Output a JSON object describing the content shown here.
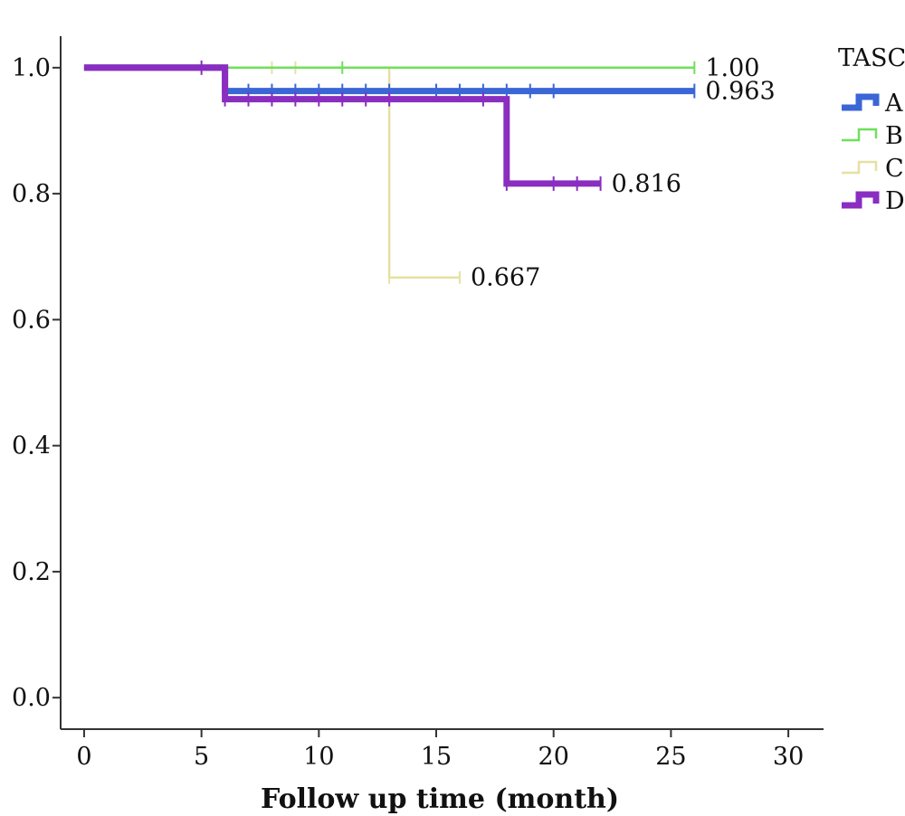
{
  "chart_data": {
    "type": "line",
    "step": true,
    "xlabel": "Follow up time (month)",
    "ylabel": "",
    "xlim": [
      -1,
      31.5
    ],
    "ylim": [
      -0.05,
      1.05
    ],
    "x_ticks": [
      0,
      5,
      10,
      15,
      20,
      25,
      30
    ],
    "x_tick_labels": [
      "0",
      "5",
      "10",
      "15",
      "20",
      "25",
      "30"
    ],
    "y_ticks": [
      0.0,
      0.2,
      0.4,
      0.6,
      0.8,
      1.0
    ],
    "y_tick_labels": [
      "0.0",
      "0.2",
      "0.4",
      "0.6",
      "0.8",
      "1.0"
    ],
    "grid": false,
    "legend": {
      "title": "TASC",
      "position": "right"
    },
    "series": [
      {
        "name": "A",
        "color": "#3a66d6",
        "stroke_width": "thick",
        "steps": [
          [
            0,
            1.0
          ],
          [
            6,
            1.0
          ],
          [
            6,
            0.963
          ],
          [
            26,
            0.963
          ]
        ],
        "censored": [
          [
            7,
            0.963
          ],
          [
            8,
            0.963
          ],
          [
            9,
            0.963
          ],
          [
            10,
            0.963
          ],
          [
            11,
            0.963
          ],
          [
            12,
            0.963
          ],
          [
            13,
            0.963
          ],
          [
            15,
            0.963
          ],
          [
            16,
            0.963
          ],
          [
            17,
            0.963
          ],
          [
            18,
            0.963
          ],
          [
            19,
            0.963
          ],
          [
            20,
            0.963
          ],
          [
            26,
            0.963
          ]
        ],
        "end_label": "0.963"
      },
      {
        "name": "B",
        "color": "#6ee05a",
        "stroke_width": "thin",
        "steps": [
          [
            0,
            1.0
          ],
          [
            26,
            1.0
          ]
        ],
        "censored": [
          [
            11,
            1.0
          ],
          [
            26,
            1.0
          ]
        ],
        "end_label": "1.00"
      },
      {
        "name": "C",
        "color": "#e6e0a2",
        "stroke_width": "thin",
        "steps": [
          [
            0,
            1.0
          ],
          [
            13,
            1.0
          ],
          [
            13,
            0.667
          ],
          [
            16,
            0.667
          ]
        ],
        "censored": [
          [
            8,
            1.0
          ],
          [
            9,
            1.0
          ],
          [
            13,
            0.667
          ],
          [
            16,
            0.667
          ]
        ],
        "end_label": "0.667"
      },
      {
        "name": "D",
        "color": "#8a2dc0",
        "stroke_width": "thick",
        "steps": [
          [
            0,
            1.0
          ],
          [
            6,
            1.0
          ],
          [
            6,
            0.95
          ],
          [
            18,
            0.95
          ],
          [
            18,
            0.816
          ],
          [
            22,
            0.816
          ]
        ],
        "censored": [
          [
            5,
            1.0
          ],
          [
            6,
            0.95
          ],
          [
            7,
            0.95
          ],
          [
            8,
            0.95
          ],
          [
            9,
            0.95
          ],
          [
            10,
            0.95
          ],
          [
            11,
            0.95
          ],
          [
            12,
            0.95
          ],
          [
            13,
            0.95
          ],
          [
            17,
            0.95
          ],
          [
            18,
            0.816
          ],
          [
            20,
            0.816
          ],
          [
            21,
            0.816
          ],
          [
            22,
            0.816
          ]
        ],
        "end_label": "0.816"
      }
    ]
  }
}
